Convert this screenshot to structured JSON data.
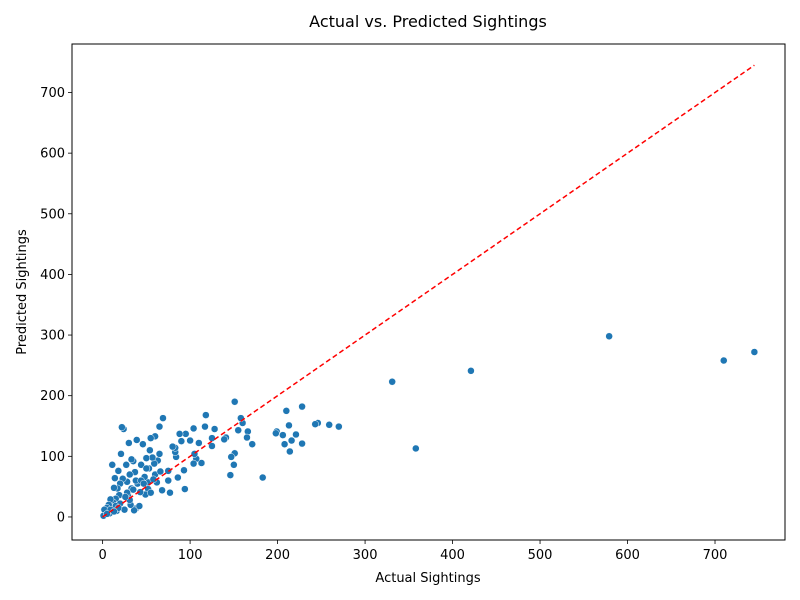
{
  "chart_data": {
    "type": "scatter",
    "title": "Actual vs. Predicted Sightings",
    "xlabel": "Actual Sightings",
    "ylabel": "Predicted Sightings",
    "xlim": [
      -35,
      780
    ],
    "ylim": [
      -38,
      780
    ],
    "xticks": [
      0,
      100,
      200,
      300,
      400,
      500,
      600,
      700
    ],
    "yticks": [
      0,
      100,
      200,
      300,
      400,
      500,
      600,
      700
    ],
    "grid": false,
    "legend": "none",
    "colors": {
      "points": "#1f77b4",
      "reference_line": "#ff0000",
      "axes": "#000000"
    },
    "reference_line": {
      "style": "dashed",
      "from": [
        0,
        0
      ],
      "to": [
        745,
        745
      ]
    },
    "points": [
      [
        745,
        272
      ],
      [
        710,
        258
      ],
      [
        579,
        298
      ],
      [
        421,
        241
      ],
      [
        331,
        223
      ],
      [
        358,
        113
      ],
      [
        270,
        149
      ],
      [
        259,
        152
      ],
      [
        246,
        155
      ],
      [
        243,
        153
      ],
      [
        228,
        182
      ],
      [
        228,
        121
      ],
      [
        221,
        136
      ],
      [
        216,
        126
      ],
      [
        214,
        108
      ],
      [
        213,
        151
      ],
      [
        210,
        175
      ],
      [
        208,
        120
      ],
      [
        206,
        135
      ],
      [
        199,
        141
      ],
      [
        198,
        138
      ],
      [
        183,
        65
      ],
      [
        171,
        120
      ],
      [
        166,
        141
      ],
      [
        165,
        131
      ],
      [
        160,
        155
      ],
      [
        158,
        163
      ],
      [
        155,
        143
      ],
      [
        151,
        190
      ],
      [
        151,
        105
      ],
      [
        150,
        86
      ],
      [
        147,
        99
      ],
      [
        146,
        69
      ],
      [
        141,
        131
      ],
      [
        139,
        128
      ],
      [
        128,
        145
      ],
      [
        125,
        130
      ],
      [
        125,
        117
      ],
      [
        118,
        168
      ],
      [
        117,
        149
      ],
      [
        113,
        89
      ],
      [
        110,
        122
      ],
      [
        107,
        96
      ],
      [
        105,
        104
      ],
      [
        104,
        146
      ],
      [
        104,
        88
      ],
      [
        100,
        126
      ],
      [
        95,
        137
      ],
      [
        94,
        46
      ],
      [
        93,
        77
      ],
      [
        90,
        125
      ],
      [
        88,
        137
      ],
      [
        86,
        65
      ],
      [
        84,
        99
      ],
      [
        83,
        107
      ],
      [
        83,
        114
      ],
      [
        80,
        116
      ],
      [
        77,
        40
      ],
      [
        75,
        60
      ],
      [
        75,
        76
      ],
      [
        69,
        163
      ],
      [
        68,
        44
      ],
      [
        65,
        104
      ],
      [
        65,
        149
      ],
      [
        63,
        93
      ],
      [
        62,
        57
      ],
      [
        60,
        133
      ],
      [
        59,
        88
      ],
      [
        57,
        98
      ],
      [
        55,
        130
      ],
      [
        54,
        110
      ],
      [
        53,
        80
      ],
      [
        52,
        57
      ],
      [
        52,
        46
      ],
      [
        50,
        97
      ],
      [
        49,
        37
      ],
      [
        48,
        66
      ],
      [
        46,
        120
      ],
      [
        44,
        86
      ],
      [
        43,
        41
      ],
      [
        40,
        55
      ],
      [
        39,
        127
      ],
      [
        38,
        60
      ],
      [
        38,
        14
      ],
      [
        37,
        74
      ],
      [
        36,
        11
      ],
      [
        35,
        92
      ],
      [
        33,
        95
      ],
      [
        33,
        47
      ],
      [
        32,
        20
      ],
      [
        31,
        70
      ],
      [
        30,
        122
      ],
      [
        29,
        36
      ],
      [
        28,
        58
      ],
      [
        27,
        86
      ],
      [
        25,
        12
      ],
      [
        24,
        145
      ],
      [
        23,
        63
      ],
      [
        22,
        148
      ],
      [
        21,
        104
      ],
      [
        20,
        55
      ],
      [
        19,
        36
      ],
      [
        18,
        76
      ],
      [
        17,
        47
      ],
      [
        16,
        10
      ],
      [
        15,
        30
      ],
      [
        14,
        64
      ],
      [
        13,
        48
      ],
      [
        12,
        24
      ],
      [
        11,
        86
      ],
      [
        10,
        17
      ],
      [
        9,
        29
      ],
      [
        8,
        6
      ],
      [
        7,
        20
      ],
      [
        6,
        10
      ],
      [
        5,
        15
      ],
      [
        4,
        8
      ],
      [
        3,
        4
      ],
      [
        2,
        12
      ],
      [
        1,
        2
      ],
      [
        44,
        60
      ],
      [
        50,
        80
      ],
      [
        60,
        70
      ],
      [
        47,
        55
      ],
      [
        35,
        45
      ],
      [
        28,
        40
      ],
      [
        20,
        22
      ],
      [
        15,
        18
      ],
      [
        9,
        12
      ],
      [
        5,
        5
      ],
      [
        42,
        18
      ],
      [
        55,
        40
      ],
      [
        66,
        75
      ],
      [
        58,
        62
      ],
      [
        31,
        28
      ],
      [
        26,
        33
      ],
      [
        18,
        15
      ],
      [
        13,
        9
      ]
    ]
  }
}
